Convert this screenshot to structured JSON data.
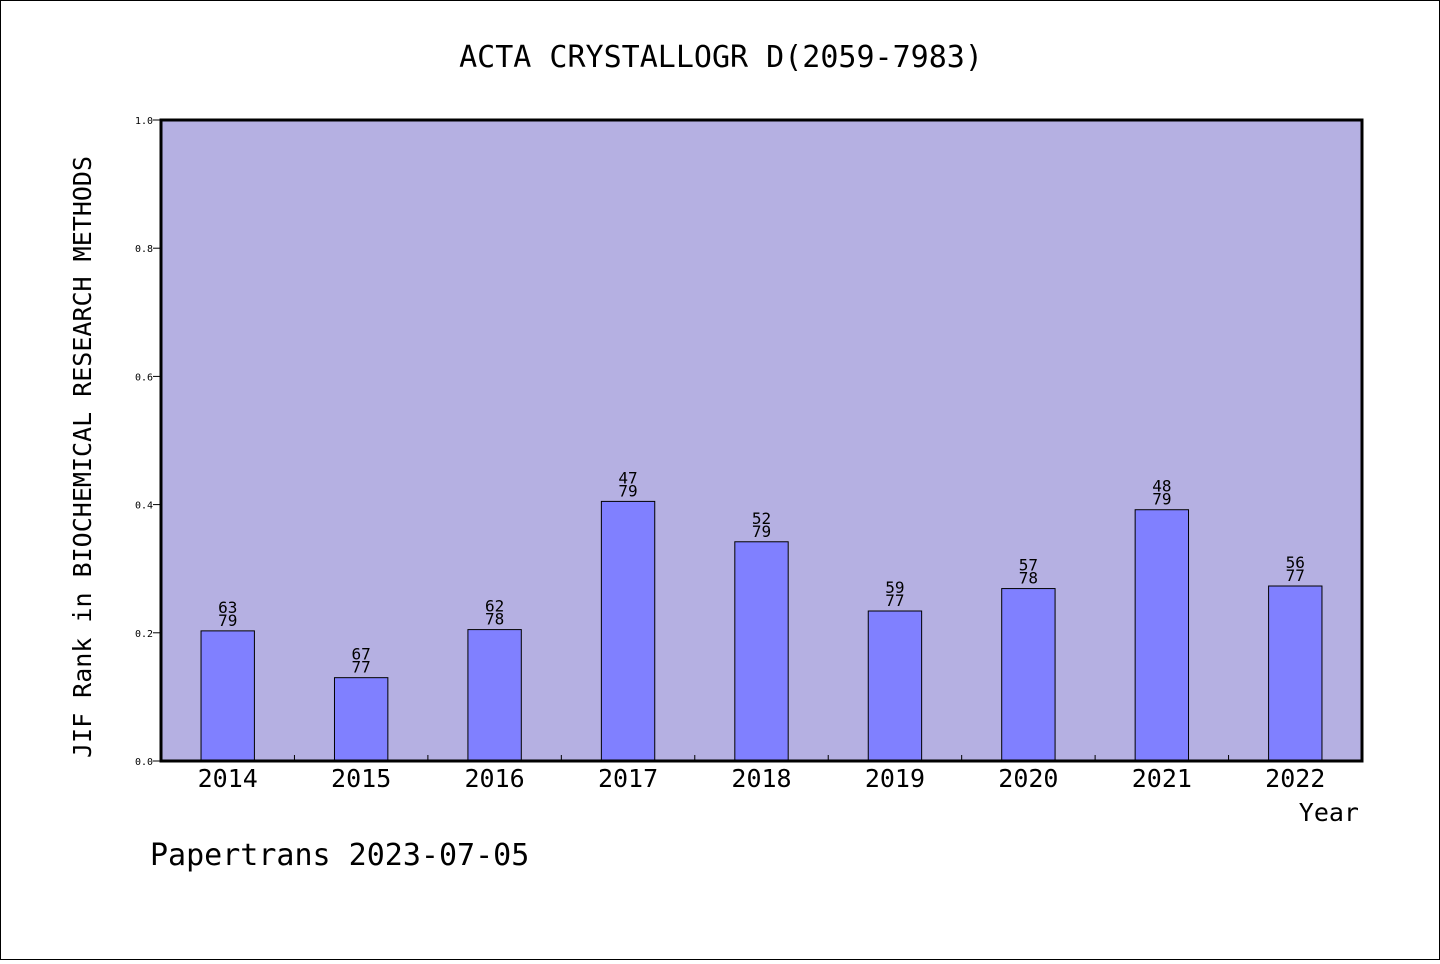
{
  "chart_data": {
    "type": "bar",
    "title": "ACTA CRYSTALLOGR D(2059-7983)",
    "xlabel": "Year",
    "ylabel": "JIF Rank in BIOCHEMICAL RESEARCH METHODS",
    "categories": [
      "2014",
      "2015",
      "2016",
      "2017",
      "2018",
      "2019",
      "2020",
      "2021",
      "2022"
    ],
    "values": [
      0.203,
      0.13,
      0.205,
      0.405,
      0.342,
      0.234,
      0.269,
      0.392,
      0.273
    ],
    "rank_labels": [
      {
        "rank": "63",
        "total": "79"
      },
      {
        "rank": "67",
        "total": "77"
      },
      {
        "rank": "62",
        "total": "78"
      },
      {
        "rank": "47",
        "total": "79"
      },
      {
        "rank": "52",
        "total": "79"
      },
      {
        "rank": "59",
        "total": "77"
      },
      {
        "rank": "57",
        "total": "78"
      },
      {
        "rank": "48",
        "total": "79"
      },
      {
        "rank": "56",
        "total": "77"
      }
    ],
    "ylim": [
      0.0,
      1.0
    ],
    "yticks": [
      "0.0",
      "0.2",
      "0.4",
      "0.6",
      "0.8",
      "1.0"
    ],
    "grid": false,
    "colors": {
      "plot_background": "#b5b0e2",
      "bar_fill": "#8080ff",
      "bar_stroke": "#000000"
    }
  },
  "footer": {
    "text": "Papertrans 2023-07-05"
  }
}
